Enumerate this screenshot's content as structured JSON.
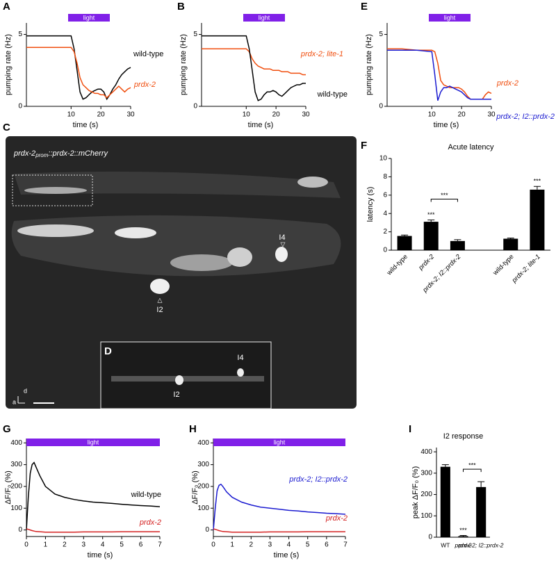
{
  "chart_data": [
    {
      "type": "line",
      "panel_label": "A",
      "xlabel": "time (s)",
      "ylabel": "pumping rate (Hz)",
      "light": {
        "label": "light",
        "start": 9,
        "end": 23,
        "color": "#8020e8"
      },
      "xlim": [
        -5,
        30
      ],
      "ylim": [
        0,
        5.8
      ],
      "xticks": [
        10,
        20,
        30
      ],
      "yticks": [
        0,
        5
      ],
      "x": [
        -5,
        0,
        5,
        10,
        11,
        12,
        13,
        14,
        15,
        16,
        17,
        18,
        19,
        20,
        21,
        22,
        23,
        24,
        25,
        26,
        27,
        28,
        29,
        30
      ],
      "series": [
        {
          "name": "wild-type",
          "color": "#000000",
          "values": [
            4.9,
            4.9,
            4.9,
            4.9,
            4.0,
            2.5,
            1.0,
            0.5,
            0.6,
            0.8,
            1.0,
            1.1,
            1.2,
            1.2,
            1.0,
            0.5,
            0.8,
            1.2,
            1.5,
            1.9,
            2.2,
            2.4,
            2.6,
            2.7
          ]
        },
        {
          "name": "prdx-2",
          "color": "#f04e0e",
          "values": [
            4.1,
            4.1,
            4.1,
            4.1,
            3.8,
            3.0,
            2.0,
            1.5,
            1.3,
            1.1,
            1.0,
            0.9,
            0.9,
            0.8,
            0.8,
            0.6,
            0.8,
            1.0,
            1.2,
            1.4,
            1.2,
            1.0,
            1.2,
            1.3
          ]
        }
      ]
    },
    {
      "type": "line",
      "panel_label": "B",
      "xlabel": "time (s)",
      "ylabel": "pumping rate (Hz)",
      "light": {
        "label": "light",
        "start": 9,
        "end": 23,
        "color": "#8020e8"
      },
      "xlim": [
        -5,
        30
      ],
      "ylim": [
        0,
        5.8
      ],
      "xticks": [
        10,
        20,
        30
      ],
      "yticks": [
        0,
        5
      ],
      "x": [
        -5,
        0,
        5,
        10,
        11,
        12,
        13,
        14,
        15,
        16,
        17,
        18,
        19,
        20,
        21,
        22,
        23,
        24,
        25,
        26,
        27,
        28,
        29,
        30
      ],
      "series": [
        {
          "name": "prdx-2; lite-1",
          "color": "#f04e0e",
          "values": [
            4.0,
            4.0,
            4.0,
            4.0,
            3.8,
            3.3,
            3.0,
            2.8,
            2.7,
            2.6,
            2.6,
            2.6,
            2.5,
            2.5,
            2.5,
            2.4,
            2.4,
            2.4,
            2.3,
            2.3,
            2.3,
            2.3,
            2.2,
            2.2
          ]
        },
        {
          "name": "wild-type",
          "color": "#000000",
          "values": [
            4.9,
            4.9,
            4.9,
            4.9,
            4.0,
            2.5,
            1.0,
            0.4,
            0.5,
            0.8,
            1.0,
            1.0,
            1.1,
            1.0,
            0.8,
            0.7,
            0.9,
            1.1,
            1.3,
            1.4,
            1.5,
            1.5,
            1.6,
            1.6
          ]
        }
      ]
    },
    {
      "type": "line",
      "panel_label": "E",
      "xlabel": "time (s)",
      "ylabel": "pumping rate (Hz)",
      "light": {
        "label": "light",
        "start": 9,
        "end": 23,
        "color": "#8020e8"
      },
      "xlim": [
        -5,
        30
      ],
      "ylim": [
        0,
        5.8
      ],
      "xticks": [
        10,
        20,
        30
      ],
      "yticks": [
        0,
        5
      ],
      "x": [
        -5,
        0,
        5,
        10,
        11,
        12,
        13,
        14,
        15,
        16,
        17,
        18,
        19,
        20,
        21,
        22,
        23,
        24,
        25,
        26,
        27,
        28,
        29,
        30
      ],
      "series": [
        {
          "name": "prdx-2",
          "color": "#f04e0e",
          "values": [
            4.0,
            4.0,
            3.9,
            3.9,
            3.8,
            3.0,
            1.8,
            1.5,
            1.4,
            1.3,
            1.3,
            1.3,
            1.3,
            1.2,
            1.0,
            0.7,
            0.5,
            0.5,
            0.5,
            0.5,
            0.5,
            0.8,
            1.0,
            0.9
          ]
        },
        {
          "name": "prdx-2; I2::prdx-2",
          "color": "#1a1ad0",
          "values": [
            3.9,
            3.9,
            3.9,
            3.8,
            2.2,
            0.4,
            1.0,
            1.3,
            1.3,
            1.4,
            1.3,
            1.2,
            1.1,
            1.0,
            0.8,
            0.6,
            0.5,
            0.5,
            0.5,
            0.5,
            0.5,
            0.5,
            0.5,
            0.5
          ]
        }
      ]
    },
    {
      "type": "bar",
      "panel_label": "F",
      "title": "Acute latency",
      "ylabel": "latency (s)",
      "color": "#000000",
      "ylim": [
        0,
        10
      ],
      "yticks": [
        0,
        2,
        4,
        6,
        8,
        10
      ],
      "categories": [
        "wild-type",
        "prdx-2",
        "prdx-2; I2::prdx-2",
        null,
        "wild-type",
        "prdx-2; lite-1"
      ],
      "values": [
        1.55,
        3.1,
        1.0,
        null,
        1.25,
        6.6
      ],
      "errors": [
        0.1,
        0.2,
        0.15,
        null,
        0.08,
        0.35
      ],
      "annotations": [
        "***",
        "***",
        "***"
      ]
    },
    {
      "type": "line",
      "panel_label": "G",
      "xlabel": "time (s)",
      "ylabel": "ΔF/F₀ (%)",
      "light": {
        "label": "light",
        "start": 0,
        "end": 7,
        "color": "#8020e8"
      },
      "xlim": [
        0,
        7
      ],
      "ylim": [
        -30,
        420
      ],
      "xticks": [
        0,
        1,
        2,
        3,
        4,
        5,
        6,
        7
      ],
      "yticks": [
        0,
        100,
        200,
        300,
        400
      ],
      "x": [
        0,
        0.1,
        0.2,
        0.3,
        0.4,
        0.5,
        0.7,
        1,
        1.5,
        2,
        2.5,
        3,
        3.5,
        4,
        4.5,
        5,
        5.5,
        6,
        6.5,
        7
      ],
      "series": [
        {
          "name": "wild-type",
          "color": "#000000",
          "values": [
            0,
            150,
            260,
            300,
            310,
            290,
            250,
            200,
            165,
            150,
            140,
            133,
            128,
            125,
            122,
            118,
            115,
            112,
            110,
            107
          ]
        },
        {
          "name": "prdx-2",
          "color": "#d42020",
          "values": [
            5,
            3,
            0,
            -3,
            -5,
            -7,
            -8,
            -10,
            -10,
            -10,
            -10,
            -9,
            -9,
            -9,
            -9,
            -8,
            -8,
            -8,
            -8,
            -8
          ]
        }
      ]
    },
    {
      "type": "line",
      "panel_label": "H",
      "xlabel": "time (s)",
      "ylabel": "ΔF/F₀ (%)",
      "light": {
        "label": "light",
        "start": 0,
        "end": 7,
        "color": "#8020e8"
      },
      "xlim": [
        0,
        7
      ],
      "ylim": [
        -30,
        420
      ],
      "xticks": [
        0,
        1,
        2,
        3,
        4,
        5,
        6,
        7
      ],
      "yticks": [
        0,
        100,
        200,
        300,
        400
      ],
      "x": [
        0,
        0.1,
        0.2,
        0.3,
        0.4,
        0.5,
        0.7,
        1,
        1.5,
        2,
        2.5,
        3,
        3.5,
        4,
        4.5,
        5,
        5.5,
        6,
        6.5,
        7
      ],
      "series": [
        {
          "name": "prdx-2; I2::prdx-2",
          "color": "#1a1ad0",
          "values": [
            0,
            100,
            180,
            205,
            210,
            200,
            175,
            150,
            128,
            115,
            105,
            100,
            95,
            90,
            87,
            83,
            80,
            77,
            75,
            72
          ]
        },
        {
          "name": "prdx-2",
          "color": "#d42020",
          "values": [
            5,
            3,
            0,
            -3,
            -5,
            -7,
            -8,
            -10,
            -10,
            -10,
            -10,
            -9,
            -9,
            -9,
            -9,
            -8,
            -8,
            -8,
            -8,
            -8
          ]
        }
      ]
    },
    {
      "type": "bar",
      "panel_label": "I",
      "title": "I2 response",
      "ylabel": "peak ΔF/F₀ (%)",
      "color": "#000000",
      "ylim": [
        0,
        420
      ],
      "yticks": [
        0,
        100,
        200,
        300,
        400
      ],
      "categories": [
        "WT",
        "prdx-2",
        "prdx-2; I2::prdx-2"
      ],
      "values": [
        330,
        5,
        235
      ],
      "errors": [
        10,
        3,
        25
      ],
      "annotations": [
        "***",
        "***"
      ]
    }
  ],
  "image_panel": {
    "panel_label": "C",
    "caption": [
      "prdx-2",
      "prom",
      "::prdx-2::mCherry"
    ],
    "labels": [
      "I4",
      "I2"
    ],
    "inset": {
      "panel_label": "D",
      "labels": [
        "I4",
        "I2"
      ]
    },
    "axes": [
      "d",
      "a"
    ]
  }
}
